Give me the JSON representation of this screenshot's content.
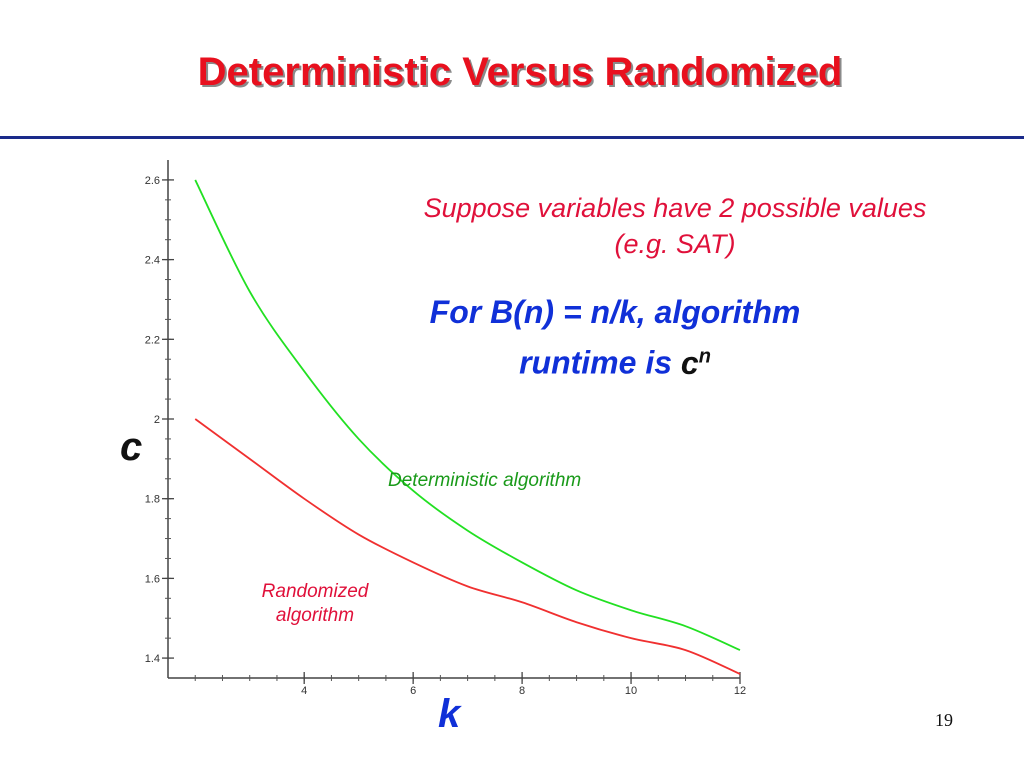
{
  "title": "Deterministic Versus Randomized",
  "note_lines": [
    "Suppose variables have 2 possible values",
    "(e.g. SAT)"
  ],
  "formula_line1": "For B(n) = n/k, algorithm",
  "formula_line2": "runtime is ",
  "formula_c": "c",
  "formula_exp": "n",
  "page_number": "19",
  "colors": {
    "title": "#e8101e",
    "rule": "#1a2a8a",
    "deterministic": "#22e022",
    "randomized": "#f03030"
  },
  "chart_data": {
    "type": "line",
    "title": "",
    "xlabel": "k",
    "ylabel": "c",
    "xlim": [
      1.5,
      12
    ],
    "ylim": [
      1.35,
      2.65
    ],
    "x_ticks": [
      {
        "value": 4,
        "label": "4"
      },
      {
        "value": 6,
        "label": "6"
      },
      {
        "value": 8,
        "label": "8"
      },
      {
        "value": 10,
        "label": "10"
      },
      {
        "value": 12,
        "label": "12"
      }
    ],
    "y_ticks": [
      1.4,
      1.6,
      1.8,
      2,
      2.2,
      2.4,
      2.6
    ],
    "y_tick_labels": [
      "1.4",
      "1.6",
      "1.8",
      "2",
      "2.2",
      "2.4",
      "2.6"
    ],
    "grid": false,
    "series": [
      {
        "name": "Deterministic algorithm",
        "color": "#22e022",
        "x": [
          2,
          3,
          4,
          5,
          6,
          7,
          8,
          9,
          10,
          11,
          12
        ],
        "y": [
          2.6,
          2.32,
          2.12,
          1.95,
          1.82,
          1.72,
          1.64,
          1.57,
          1.52,
          1.48,
          1.42
        ]
      },
      {
        "name": "Randomized algorithm",
        "color": "#f03030",
        "x": [
          2,
          3,
          4,
          5,
          6,
          7,
          8,
          9,
          10,
          11,
          12
        ],
        "y": [
          2.0,
          1.9,
          1.8,
          1.71,
          1.64,
          1.58,
          1.54,
          1.49,
          1.45,
          1.42,
          1.36
        ]
      }
    ],
    "series_labels": {
      "deterministic": "Deterministic algorithm",
      "randomized_lines": [
        "Randomized",
        "algorithm"
      ]
    }
  }
}
